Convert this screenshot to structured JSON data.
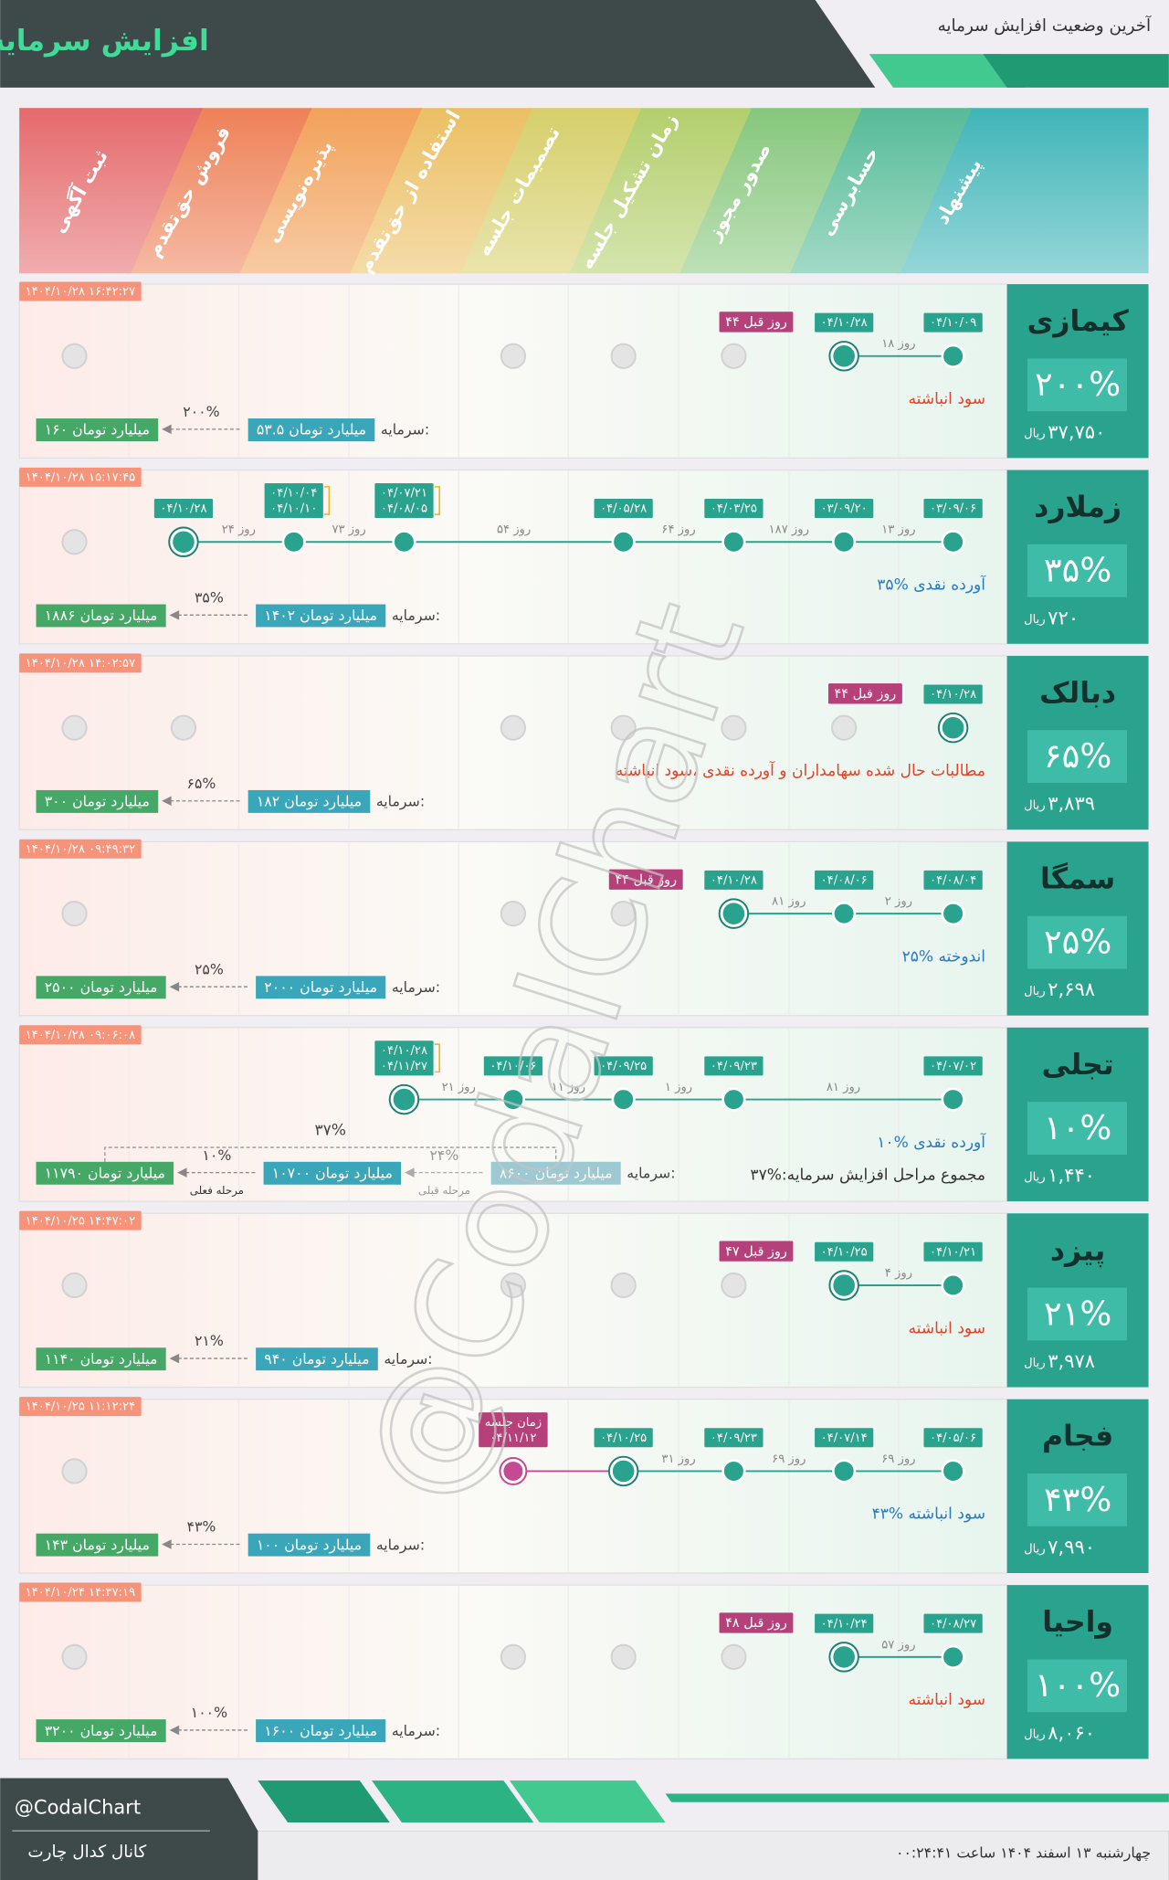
{
  "header": {
    "title": "افزایش سرمایه",
    "subtitle": "آخرین وضعیت افزایش سرمایه"
  },
  "stages": [
    "پیشنهاد",
    "حسابرسی",
    "صدور مجوز",
    "زمان تشکیل جلسه",
    "تصمیمات جلسه",
    "استفاده از حق‌تقدم",
    "پذیره‌نویسی",
    "فروش حق‌تقدم",
    "ثبت آگهی"
  ],
  "watermark": "@CodalChart",
  "cards": [
    {
      "timestamp": "۱۴۰۴/۱۰/۲۸ ۱۶:۴۲:۲۷",
      "name": "کیمازی",
      "percent": "۲۰۰%",
      "price": "۳۷,۷۵۰",
      "currency": "ریال",
      "points": [
        {
          "stage": 0,
          "dates": [
            "۰۴/۱۰/۰۹"
          ],
          "state": "done"
        },
        {
          "stage": 1,
          "dates": [
            "۰۴/۱۰/۲۸"
          ],
          "state": "current"
        }
      ],
      "days": [
        "۱۸ روز"
      ],
      "ago": "۴۴ روز قبل",
      "pending": [
        2,
        3,
        4,
        8
      ],
      "description": "سود انباشته",
      "description_color": "#e0442a",
      "capital_label": "سرمایه:",
      "amounts": [
        "۵۳.۵ میلیارد تومان",
        "۱۶۰ میلیارد تومان"
      ],
      "changes": [
        {
          "percent": "۲۰۰%"
        }
      ]
    },
    {
      "timestamp": "۱۴۰۴/۱۰/۲۸ ۱۵:۱۷:۴۵",
      "name": "زملارد",
      "percent": "۳۵%",
      "price": "۷۲۰",
      "currency": "ریال",
      "points": [
        {
          "stage": 0,
          "dates": [
            "۰۳/۰۹/۰۶"
          ],
          "state": "done"
        },
        {
          "stage": 1,
          "dates": [
            "۰۳/۰۹/۲۰"
          ],
          "state": "done"
        },
        {
          "stage": 2,
          "dates": [
            "۰۴/۰۳/۲۵"
          ],
          "state": "done"
        },
        {
          "stage": 3,
          "dates": [
            "۰۴/۰۵/۲۸"
          ],
          "state": "done"
        },
        {
          "stage": 5,
          "dates": [
            "۰۴/۰۷/۲۱",
            "۰۴/۰۸/۰۵"
          ],
          "state": "done"
        },
        {
          "stage": 6,
          "dates": [
            "۰۴/۱۰/۰۴",
            "۰۴/۱۰/۱۰"
          ],
          "state": "done"
        },
        {
          "stage": 7,
          "dates": [
            "۰۴/۱۰/۲۸"
          ],
          "state": "current"
        }
      ],
      "days": [
        "۱۳ روز",
        "۱۸۷ روز",
        "۶۴ روز",
        "۵۴ روز",
        "۷۳ روز",
        "۲۴ روز"
      ],
      "pending": [
        8
      ],
      "description": "۳۵% آورده نقدی",
      "description_color": "#2a7ac0",
      "capital_label": "سرمایه:",
      "amounts": [
        "۱۴۰۲ میلیارد تومان",
        "۱۸۸۶ میلیارد تومان"
      ],
      "changes": [
        {
          "percent": "۳۵%"
        }
      ]
    },
    {
      "timestamp": "۱۴۰۴/۱۰/۲۸ ۱۴:۰۲:۵۷",
      "name": "دبالک",
      "percent": "۶۵%",
      "price": "۳,۸۳۹",
      "currency": "ریال",
      "points": [
        {
          "stage": 0,
          "dates": [
            "۰۴/۱۰/۲۸"
          ],
          "state": "current"
        }
      ],
      "days": [],
      "ago": "۴۴ روز قبل",
      "pending": [
        1,
        2,
        3,
        4,
        7,
        8
      ],
      "description": "مطالبات حال شده سهامداران و آورده نقدی ،سود انباشته",
      "description_color": "#e0442a",
      "capital_label": "سرمایه:",
      "amounts": [
        "۱۸۲ میلیارد تومان",
        "۳۰۰ میلیارد تومان"
      ],
      "changes": [
        {
          "percent": "۶۵%"
        }
      ]
    },
    {
      "timestamp": "۱۴۰۴/۱۰/۲۸ ۰۹:۴۹:۳۲",
      "name": "سمگا",
      "percent": "۲۵%",
      "price": "۲,۶۹۸",
      "currency": "ریال",
      "points": [
        {
          "stage": 0,
          "dates": [
            "۰۴/۰۸/۰۴"
          ],
          "state": "done"
        },
        {
          "stage": 1,
          "dates": [
            "۰۴/۰۸/۰۶"
          ],
          "state": "done"
        },
        {
          "stage": 2,
          "dates": [
            "۰۴/۱۰/۲۸"
          ],
          "state": "current"
        }
      ],
      "days": [
        "۲ روز",
        "۸۱ روز"
      ],
      "ago": "۴۴ روز قبل",
      "pending": [
        3,
        4,
        8
      ],
      "description": "۲۵% اندوخته",
      "description_color": "#2a7ac0",
      "capital_label": "سرمایه:",
      "amounts": [
        "۲۰۰۰ میلیارد تومان",
        "۲۵۰۰ میلیارد تومان"
      ],
      "changes": [
        {
          "percent": "۲۵%"
        }
      ]
    },
    {
      "timestamp": "۱۴۰۴/۱۰/۲۸ ۰۹:۰۶:۰۸",
      "name": "تجلی",
      "percent": "۱۰%",
      "price": "۱,۴۴۰",
      "currency": "ریال",
      "points": [
        {
          "stage": 0,
          "dates": [
            "۰۴/۰۷/۰۲"
          ],
          "state": "done"
        },
        {
          "stage": 2,
          "dates": [
            "۰۴/۰۹/۲۳"
          ],
          "state": "done"
        },
        {
          "stage": 3,
          "dates": [
            "۰۴/۰۹/۲۵"
          ],
          "state": "done"
        },
        {
          "stage": 4,
          "dates": [
            "۰۴/۱۰/۰۶"
          ],
          "state": "done"
        },
        {
          "stage": 5,
          "dates": [
            "۰۴/۱۰/۲۸",
            "۰۴/۱۱/۲۷"
          ],
          "state": "current"
        }
      ],
      "days": [
        "۸۱ روز",
        "۱ روز",
        "۱۱ روز",
        "۲۱ روز"
      ],
      "pending": [],
      "description": "۱۰% آورده نقدی",
      "description_color": "#2a7ac0",
      "extra": "مجموع مراحل افزایش سرمایه:%۳۷",
      "capital_label": "سرمایه:",
      "amounts": [
        "۸۶۰۰ میلیارد تومان",
        "۱۰۷۰۰ میلیارد تومان",
        "۱۱۷۹۰ میلیارد تومان"
      ],
      "changes": [
        {
          "percent": "۲۴%",
          "label": "مرحله قبلی"
        },
        {
          "percent": "۱۰%",
          "label": "مرحله فعلی"
        }
      ],
      "total": "۳۷%"
    },
    {
      "timestamp": "۱۴۰۴/۱۰/۲۵ ۱۴:۴۷:۰۲",
      "name": "پیزد",
      "percent": "۲۱%",
      "price": "۳,۹۷۸",
      "currency": "ریال",
      "points": [
        {
          "stage": 0,
          "dates": [
            "۰۴/۱۰/۲۱"
          ],
          "state": "done"
        },
        {
          "stage": 1,
          "dates": [
            "۰۴/۱۰/۲۵"
          ],
          "state": "current"
        }
      ],
      "days": [
        "۴ روز"
      ],
      "ago": "۴۷ روز قبل",
      "pending": [
        2,
        3,
        4,
        8
      ],
      "description": "سود انباشته",
      "description_color": "#e0442a",
      "capital_label": "سرمایه:",
      "amounts": [
        "۹۴۰ میلیارد تومان",
        "۱۱۴۰ میلیارد تومان"
      ],
      "changes": [
        {
          "percent": "۲۱%"
        }
      ]
    },
    {
      "timestamp": "۱۴۰۴/۱۰/۲۵ ۱۱:۱۲:۲۴",
      "name": "فجام",
      "percent": "۴۳%",
      "price": "۷,۹۹۰",
      "currency": "ریال",
      "points": [
        {
          "stage": 0,
          "dates": [
            "۰۴/۰۵/۰۶"
          ],
          "state": "done"
        },
        {
          "stage": 1,
          "dates": [
            "۰۴/۰۷/۱۴"
          ],
          "state": "done"
        },
        {
          "stage": 2,
          "dates": [
            "۰۴/۰۹/۲۳"
          ],
          "state": "done"
        },
        {
          "stage": 3,
          "dates": [
            "۰۴/۱۰/۲۵"
          ],
          "state": "current"
        },
        {
          "stage": 4,
          "dates": [
            "زمان جلسه",
            "۰۴/۱۱/۱۲"
          ],
          "state": "planned"
        }
      ],
      "days": [
        "۶۹ روز",
        "۶۹ روز",
        "۳۱ روز",
        null
      ],
      "pending": [
        8
      ],
      "description": "۴۳% سود انباشته",
      "description_color": "#2a7ac0",
      "capital_label": "سرمایه:",
      "amounts": [
        "۱۰۰ میلیارد تومان",
        "۱۴۳ میلیارد تومان"
      ],
      "changes": [
        {
          "percent": "۴۳%"
        }
      ]
    },
    {
      "timestamp": "۱۴۰۴/۱۰/۲۴ ۱۴:۳۷:۱۹",
      "name": "واحیا",
      "percent": "۱۰۰%",
      "price": "۸,۰۶۰",
      "currency": "ریال",
      "points": [
        {
          "stage": 0,
          "dates": [
            "۰۴/۰۸/۲۷"
          ],
          "state": "done"
        },
        {
          "stage": 1,
          "dates": [
            "۰۴/۱۰/۲۴"
          ],
          "state": "current"
        }
      ],
      "days": [
        "۵۷ روز"
      ],
      "ago": "۴۸ روز قبل",
      "pending": [
        2,
        3,
        4,
        8
      ],
      "description": "سود انباشته",
      "description_color": "#e0442a",
      "capital_label": "سرمایه:",
      "amounts": [
        "۱۶۰۰ میلیارد تومان",
        "۳۲۰۰ میلیارد تومان"
      ],
      "changes": [
        {
          "percent": "۱۰۰%"
        }
      ]
    }
  ],
  "footer": {
    "handle": "@CodalChart",
    "channel": "کانال کدال چارت",
    "date": "چهارشنبه ۱۳ اسفند ۱۴۰۴ ساعت ۰۰:۲۴:۴۱"
  }
}
